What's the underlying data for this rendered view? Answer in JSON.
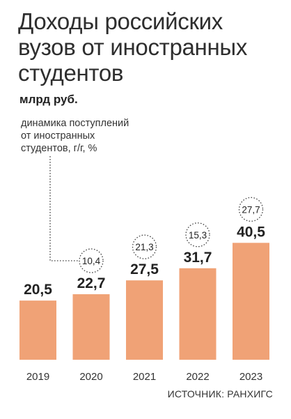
{
  "header": {
    "title_lines": [
      "Доходы российских",
      "вузов от иностранных",
      "студентов"
    ],
    "unit": "млрд руб."
  },
  "note_lines": [
    "динамика поступлений",
    "от иностранных",
    "студентов, г/г, %"
  ],
  "source": "ИСТОЧНИК: РАНХИГС",
  "colors": {
    "bar": "#f0a276",
    "text": "#2b2b2b"
  },
  "chart_data": {
    "type": "bar",
    "categories": [
      "2019",
      "2020",
      "2021",
      "2022",
      "2023"
    ],
    "values": [
      20.5,
      22.7,
      27.5,
      31.7,
      40.5
    ],
    "value_labels": [
      "20,5",
      "22,7",
      "27,5",
      "31,7",
      "40,5"
    ],
    "growth_labels": [
      "",
      "10,4",
      "21,3",
      "15,3",
      "27,7"
    ],
    "unit": "млрд руб.",
    "growth_series_label": "динамика поступлений от иностранных студентов, г/г, %"
  }
}
